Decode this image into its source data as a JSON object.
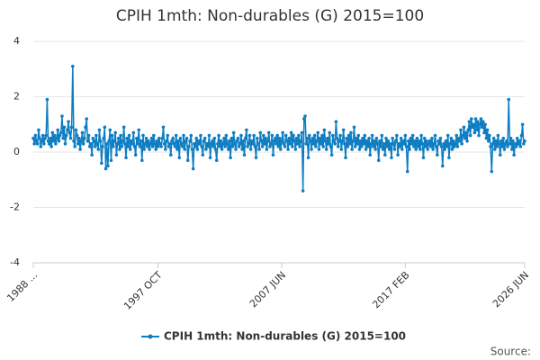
{
  "chart_data": {
    "type": "line",
    "title": "CPIH 1mth: Non-durables (G) 2015=100",
    "source": "Source:",
    "ylim": [
      -4,
      4
    ],
    "yticks": [
      -4,
      -2,
      0,
      2,
      4
    ],
    "grid": true,
    "categories": [
      "1988 ...",
      null,
      null,
      null,
      null,
      null,
      null,
      null,
      null,
      null,
      null,
      null,
      null,
      null,
      null,
      null,
      null,
      null,
      null,
      null,
      null,
      null,
      null,
      null,
      null,
      null,
      null,
      null,
      null,
      null,
      null,
      null,
      null,
      null,
      null,
      null,
      null,
      null,
      null,
      null,
      null,
      null,
      null,
      null,
      null,
      null,
      null,
      null,
      null,
      null,
      null,
      null,
      null,
      null,
      null,
      null,
      null,
      null,
      null,
      null,
      null,
      null,
      null,
      null,
      null,
      null,
      null,
      null,
      null,
      null,
      null,
      null,
      null,
      null,
      null,
      null,
      null,
      null,
      null,
      null,
      null,
      null,
      null,
      null,
      null,
      null,
      null,
      null,
      null,
      null,
      null,
      null,
      null,
      null,
      null,
      null,
      null,
      null,
      null,
      null,
      null,
      null,
      null,
      null,
      null,
      null,
      null,
      null,
      null,
      null,
      null,
      null,
      null,
      null,
      null,
      null,
      null,
      "1997 OCT",
      null,
      null,
      null,
      null,
      null,
      null,
      null,
      null,
      null,
      null,
      null,
      null,
      null,
      null,
      null,
      null,
      null,
      null,
      null,
      null,
      null,
      null,
      null,
      null,
      null,
      null,
      null,
      null,
      null,
      null,
      null,
      null,
      null,
      null,
      null,
      null,
      null,
      null,
      null,
      null,
      null,
      null,
      null,
      null,
      null,
      null,
      null,
      null,
      null,
      null,
      null,
      null,
      null,
      null,
      null,
      null,
      null,
      null,
      null,
      null,
      null,
      null,
      null,
      null,
      null,
      null,
      null,
      null,
      null,
      null,
      null,
      null,
      null,
      null,
      null,
      null,
      null,
      null,
      null,
      null,
      null,
      null,
      null,
      null,
      null,
      null,
      null,
      null,
      null,
      null,
      null,
      null,
      null,
      null,
      null,
      null,
      null,
      null,
      null,
      null,
      null,
      null,
      null,
      null,
      null,
      null,
      null,
      null,
      null,
      null,
      null,
      null,
      null,
      null,
      null,
      "2007 JUN",
      null,
      null,
      null,
      null,
      null,
      null,
      null,
      null,
      null,
      null,
      null,
      null,
      null,
      null,
      null,
      null,
      null,
      null,
      null,
      null,
      null,
      null,
      null,
      null,
      null,
      null,
      null,
      null,
      null,
      null,
      null,
      null,
      null,
      null,
      null,
      null,
      null,
      null,
      null,
      null,
      null,
      null,
      null,
      null,
      null,
      null,
      null,
      null,
      null,
      null,
      null,
      null,
      null,
      null,
      null,
      null,
      null,
      null,
      null,
      null,
      null,
      null,
      null,
      null,
      null,
      null,
      null,
      null,
      null,
      null,
      null,
      null,
      null,
      null,
      null,
      null,
      null,
      null,
      null,
      null,
      null,
      null,
      null,
      null,
      null,
      null,
      null,
      null,
      null,
      null,
      null,
      null,
      null,
      null,
      null,
      null,
      null,
      null,
      null,
      null,
      null,
      null,
      null,
      null,
      null,
      null,
      null,
      null,
      null,
      null,
      null,
      null,
      null,
      null,
      null,
      "2017 FEB",
      null,
      null,
      null,
      null,
      null,
      null,
      null,
      null,
      null,
      null,
      null,
      null,
      null,
      null,
      null,
      null,
      null,
      null,
      null,
      null,
      null,
      null,
      null,
      null,
      null,
      null,
      null,
      null,
      null,
      null,
      null,
      null,
      null,
      null,
      null,
      null,
      null,
      null,
      null,
      null,
      null,
      null,
      null,
      null,
      null,
      null,
      null,
      null,
      null,
      null,
      null,
      null,
      null,
      null,
      null,
      null,
      null,
      null,
      null,
      null,
      null,
      null,
      null,
      null,
      null,
      null,
      null,
      null,
      null,
      null,
      null,
      null,
      null,
      null,
      null,
      null,
      null,
      null,
      null,
      null,
      null,
      null,
      null,
      null,
      null,
      null,
      null,
      null,
      null,
      null,
      null,
      null,
      null,
      null,
      null,
      null,
      null,
      null,
      null,
      null,
      null,
      null,
      null,
      null,
      null,
      null,
      null,
      null,
      null,
      null,
      null,
      "2026 JUN"
    ],
    "series": [
      {
        "name": "CPIH 1mth: Non-durables (G) 2015=100",
        "color": "#0e7dc2",
        "values": [
          0.5,
          0.3,
          0.6,
          0.4,
          0.3,
          0.8,
          0.5,
          0.2,
          0.4,
          0.6,
          0.3,
          0.5,
          0.6,
          1.9,
          0.4,
          0.3,
          0.5,
          0.2,
          0.7,
          0.4,
          0.6,
          0.3,
          0.5,
          0.8,
          0.4,
          0.6,
          0.7,
          1.3,
          0.5,
          0.9,
          0.3,
          0.6,
          0.8,
          1.1,
          0.7,
          0.5,
          0.9,
          3.1,
          0.4,
          0.2,
          0.8,
          0.6,
          0.3,
          0.5,
          0.1,
          0.4,
          0.7,
          0.3,
          0.5,
          0.9,
          1.2,
          0.4,
          0.6,
          0.2,
          0.3,
          -0.1,
          0.5,
          0.4,
          0.2,
          0.6,
          0.3,
          0.1,
          0.8,
          0.4,
          -0.4,
          0.2,
          0.5,
          0.9,
          -0.6,
          0.3,
          -0.5,
          0.4,
          0.8,
          -0.3,
          0.6,
          0.2,
          0.4,
          0.7,
          -0.1,
          0.3,
          0.5,
          0.1,
          0.6,
          0.2,
          0.4,
          0.9,
          0.3,
          -0.2,
          0.5,
          0.2,
          0.6,
          0.1,
          0.4,
          0.3,
          0.7,
          0.2,
          -0.1,
          0.5,
          0.3,
          0.8,
          0.2,
          0.4,
          -0.3,
          0.6,
          0.1,
          0.3,
          0.5,
          0.2,
          0.4,
          0.1,
          0.3,
          0.5,
          0.2,
          0.6,
          0.3,
          0.1,
          0.4,
          0.2,
          0.5,
          0.3,
          0.2,
          0.5,
          0.9,
          0.3,
          0.1,
          0.4,
          0.6,
          0.2,
          0.3,
          -0.1,
          0.4,
          0.5,
          0.3,
          0.2,
          0.6,
          0.1,
          0.4,
          -0.2,
          0.5,
          0.3,
          0.2,
          0.6,
          0.1,
          0.4,
          0.5,
          -0.3,
          0.2,
          0.4,
          0.6,
          0.1,
          -0.6,
          0.3,
          0.2,
          0.5,
          0.1,
          0.4,
          0.3,
          0.6,
          0.2,
          -0.1,
          0.4,
          0.5,
          0.1,
          0.3,
          0.2,
          0.6,
          -0.2,
          0.3,
          0.4,
          0.2,
          0.5,
          0.1,
          -0.3,
          0.3,
          0.6,
          0.2,
          0.4,
          0.1,
          0.3,
          0.5,
          0.2,
          0.6,
          0.3,
          0.1,
          0.4,
          -0.2,
          0.5,
          0.2,
          0.7,
          0.3,
          0.1,
          0.4,
          0.5,
          0.2,
          0.3,
          0.6,
          0.1,
          0.4,
          -0.1,
          0.5,
          0.8,
          0.2,
          0.3,
          0.6,
          0.1,
          0.4,
          0.3,
          0.6,
          0.2,
          -0.2,
          0.5,
          0.3,
          0.1,
          0.7,
          0.4,
          0.2,
          0.6,
          0.3,
          0.5,
          0.1,
          0.4,
          0.7,
          0.2,
          0.3,
          0.6,
          -0.1,
          0.4,
          0.5,
          0.3,
          0.6,
          0.2,
          0.5,
          0.1,
          0.4,
          0.7,
          0.3,
          0.2,
          0.6,
          0.4,
          0.1,
          0.5,
          0.3,
          0.7,
          0.2,
          0.6,
          0.4,
          0.1,
          0.5,
          0.3,
          0.6,
          0.2,
          0.4,
          0.7,
          -1.4,
          1.2,
          1.3,
          0.3,
          0.5,
          -0.2,
          0.6,
          0.4,
          0.1,
          0.5,
          0.3,
          0.6,
          0.2,
          0.4,
          0.7,
          0.1,
          0.5,
          0.3,
          0.6,
          0.2,
          0.8,
          0.4,
          0.1,
          0.5,
          0.3,
          0.7,
          0.2,
          -0.1,
          0.6,
          0.4,
          0.3,
          1.1,
          0.5,
          0.2,
          0.4,
          0.6,
          0.1,
          0.4,
          0.8,
          0.3,
          -0.2,
          0.5,
          0.2,
          0.6,
          0.3,
          0.7,
          0.1,
          0.4,
          0.9,
          0.2,
          0.5,
          0.3,
          0.6,
          0.1,
          0.4,
          0.2,
          0.5,
          0.3,
          0.6,
          0.1,
          0.4,
          0.2,
          0.5,
          -0.1,
          0.3,
          0.6,
          0.2,
          0.4,
          0.1,
          0.5,
          0.3,
          -0.3,
          0.4,
          0.2,
          0.6,
          0.1,
          0.3,
          -0.1,
          0.5,
          0.2,
          0.4,
          0.1,
          0.3,
          -0.2,
          0.5,
          0.3,
          0.1,
          0.4,
          0.6,
          -0.1,
          0.3,
          0.2,
          0.5,
          0.1,
          0.4,
          0.3,
          0.6,
          0.2,
          -0.7,
          0.4,
          0.1,
          0.5,
          0.3,
          0.6,
          0.2,
          0.4,
          0.1,
          0.5,
          0.2,
          0.4,
          0.1,
          0.6,
          0.3,
          -0.2,
          0.5,
          0.2,
          0.4,
          0.1,
          0.3,
          0.4,
          0.2,
          0.5,
          0.1,
          0.3,
          0.6,
          0.2,
          -0.1,
          0.4,
          0.3,
          0.5,
          0.2,
          -0.5,
          0.3,
          0.1,
          0.4,
          0.2,
          0.6,
          -0.2,
          0.3,
          0.5,
          0.1,
          0.4,
          0.2,
          0.3,
          0.6,
          0.2,
          0.5,
          0.4,
          0.8,
          0.3,
          0.6,
          0.9,
          0.5,
          0.7,
          0.4,
          0.8,
          1.1,
          0.6,
          1.2,
          0.9,
          1.0,
          0.7,
          1.2,
          0.8,
          1.1,
          0.6,
          1.0,
          1.2,
          0.9,
          1.1,
          0.7,
          1.0,
          0.5,
          0.8,
          0.4,
          0.6,
          0.2,
          -0.7,
          0.3,
          0.5,
          0.1,
          0.4,
          0.2,
          0.6,
          0.3,
          -0.1,
          0.4,
          0.2,
          0.5,
          0.1,
          0.3,
          0.4,
          0.2,
          1.9,
          0.3,
          0.5,
          0.1,
          0.4,
          -0.1,
          0.3,
          0.2,
          0.5,
          0.3,
          0.4,
          0.2,
          0.6,
          1.0,
          0.3,
          0.4
        ]
      }
    ]
  }
}
